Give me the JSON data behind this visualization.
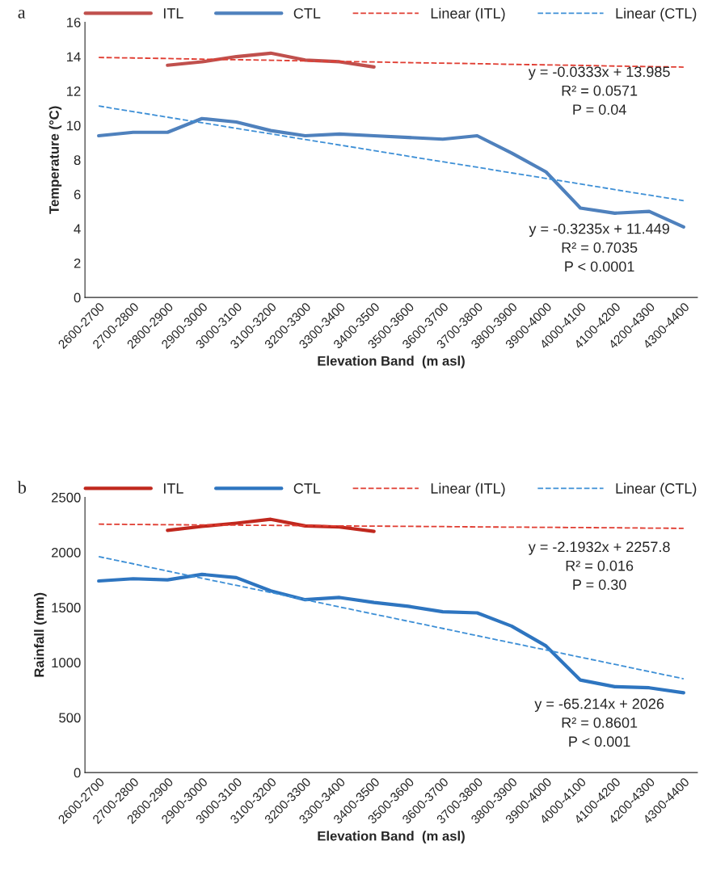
{
  "chart_data": [
    {
      "type": "line",
      "title": "a",
      "xlabel": "Elevation Band  (m asl)",
      "ylabel": "Temperature (°C)",
      "categories": [
        "2600-2700",
        "2700-2800",
        "2800-2900",
        "2900-3000",
        "3000-3100",
        "3100-3200",
        "3200-3300",
        "3300-3400",
        "3400-3500",
        "3500-3600",
        "3600-3700",
        "3700-3800",
        "3800-3900",
        "3900-4000",
        "4000-4100",
        "4100-4200",
        "4200-4300",
        "4300-4400"
      ],
      "series": [
        {
          "name": "ITL",
          "color": "#c0504d",
          "values": [
            null,
            null,
            13.5,
            13.7,
            14.0,
            14.2,
            13.8,
            13.7,
            13.4,
            null,
            null,
            null,
            null,
            null,
            null,
            null,
            null,
            null
          ]
        },
        {
          "name": "CTL",
          "color": "#4f81bd",
          "values": [
            9.4,
            9.6,
            9.6,
            10.4,
            10.2,
            9.7,
            9.4,
            9.5,
            9.4,
            9.3,
            9.2,
            9.4,
            8.4,
            7.3,
            5.2,
            4.9,
            5.0,
            4.1
          ]
        },
        {
          "name": "Linear (ITL)",
          "color": "#e03c31",
          "line_style": "dashed",
          "values": [
            13.95,
            13.92,
            13.89,
            13.85,
            13.82,
            13.79,
            13.75,
            13.72,
            13.69,
            13.65,
            13.62,
            13.59,
            13.55,
            13.52,
            13.49,
            13.45,
            13.42,
            13.39
          ]
        },
        {
          "name": "Linear (CTL)",
          "color": "#3d8fd6",
          "line_style": "dashed",
          "values": [
            11.13,
            10.8,
            10.48,
            10.16,
            9.83,
            9.51,
            9.18,
            8.86,
            8.54,
            8.21,
            7.89,
            7.57,
            7.24,
            6.92,
            6.6,
            6.27,
            5.95,
            5.63
          ]
        }
      ],
      "ylim": [
        0,
        16
      ],
      "yticks": [
        0,
        2,
        4,
        6,
        8,
        10,
        12,
        14,
        16
      ],
      "grid": false,
      "legend": "top",
      "annotations": [
        "y = -0.0333x + 13.985\nR² = 0.0571\nP = 0.04",
        "y = -0.3235x + 11.449\nR² = 0.7035\nP < 0.0001"
      ]
    },
    {
      "type": "line",
      "title": "b",
      "xlabel": "Elevation Band  (m asl)",
      "ylabel": "Rainfall (mm)",
      "categories": [
        "2600-2700",
        "2700-2800",
        "2800-2900",
        "2900-3000",
        "3000-3100",
        "3100-3200",
        "3200-3300",
        "3300-3400",
        "3400-3500",
        "3500-3600",
        "3600-3700",
        "3700-3800",
        "3800-3900",
        "3900-4000",
        "4000-4100",
        "4100-4200",
        "4200-4300",
        "4300-4400"
      ],
      "series": [
        {
          "name": "ITL",
          "color": "#c0281e",
          "values": [
            null,
            null,
            2200,
            2235,
            2265,
            2300,
            2240,
            2230,
            2190,
            null,
            null,
            null,
            null,
            null,
            null,
            null,
            null,
            null
          ]
        },
        {
          "name": "CTL",
          "color": "#2e75c0",
          "values": [
            1740,
            1760,
            1750,
            1800,
            1770,
            1650,
            1570,
            1590,
            1545,
            1510,
            1460,
            1450,
            1330,
            1150,
            840,
            780,
            770,
            725
          ]
        },
        {
          "name": "Linear (ITL)",
          "color": "#e03c31",
          "line_style": "dashed",
          "values": [
            2256,
            2253,
            2251,
            2249,
            2247,
            2245,
            2242,
            2240,
            2238,
            2236,
            2234,
            2231,
            2229,
            2227,
            2225,
            2223,
            2220,
            2218
          ]
        },
        {
          "name": "Linear (CTL)",
          "color": "#3d8fd6",
          "line_style": "dashed",
          "values": [
            1961,
            1896,
            1830,
            1765,
            1700,
            1635,
            1570,
            1504,
            1439,
            1374,
            1309,
            1243,
            1178,
            1113,
            1048,
            983,
            917,
            852
          ]
        }
      ],
      "ylim": [
        0,
        2500
      ],
      "yticks": [
        0,
        500,
        1000,
        1500,
        2000,
        2500
      ],
      "grid": false,
      "legend": "top",
      "annotations": [
        "y = -2.1932x + 2257.8\nR² = 0.016\nP = 0.30",
        "y = -65.214x + 2026\nR² = 0.8601\nP < 0.001"
      ]
    }
  ]
}
